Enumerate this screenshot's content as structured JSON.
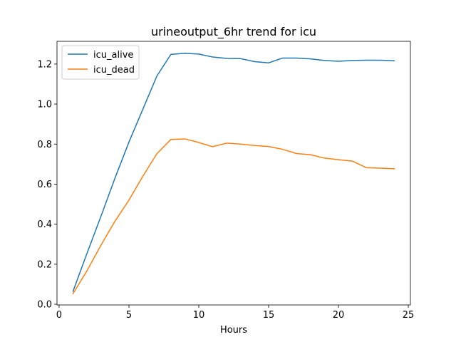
{
  "chart_data": {
    "type": "line",
    "title": "urineoutput_6hr trend for icu",
    "xlabel": "Hours",
    "ylabel": "",
    "xlim": [
      -0.15,
      25.15
    ],
    "ylim": [
      -0.0035,
      1.3135
    ],
    "xticks": [
      0,
      5,
      10,
      15,
      20,
      25
    ],
    "yticks": [
      0.0,
      0.2,
      0.4,
      0.6,
      0.8,
      1.0,
      1.2
    ],
    "ytick_labels": [
      "0.0",
      "0.2",
      "0.4",
      "0.6",
      "0.8",
      "1.0",
      "1.2"
    ],
    "grid": false,
    "legend_position": "upper left",
    "x": [
      1,
      2,
      3,
      4,
      5,
      6,
      7,
      8,
      9,
      10,
      11,
      12,
      13,
      14,
      15,
      16,
      17,
      18,
      19,
      20,
      21,
      22,
      23,
      24
    ],
    "series": [
      {
        "name": "icu_alive",
        "color": "#1f77b4",
        "values": [
          0.065,
          0.255,
          0.44,
          0.63,
          0.81,
          0.975,
          1.14,
          1.248,
          1.254,
          1.25,
          1.235,
          1.228,
          1.227,
          1.212,
          1.206,
          1.23,
          1.23,
          1.226,
          1.218,
          1.214,
          1.218,
          1.219,
          1.219,
          1.216
        ]
      },
      {
        "name": "icu_dead",
        "color": "#ff7f0e",
        "values": [
          0.053,
          0.168,
          0.295,
          0.415,
          0.52,
          0.64,
          0.752,
          0.823,
          0.826,
          0.808,
          0.787,
          0.805,
          0.8,
          0.793,
          0.788,
          0.774,
          0.753,
          0.747,
          0.73,
          0.722,
          0.715,
          0.682,
          0.68,
          0.677
        ]
      }
    ]
  }
}
